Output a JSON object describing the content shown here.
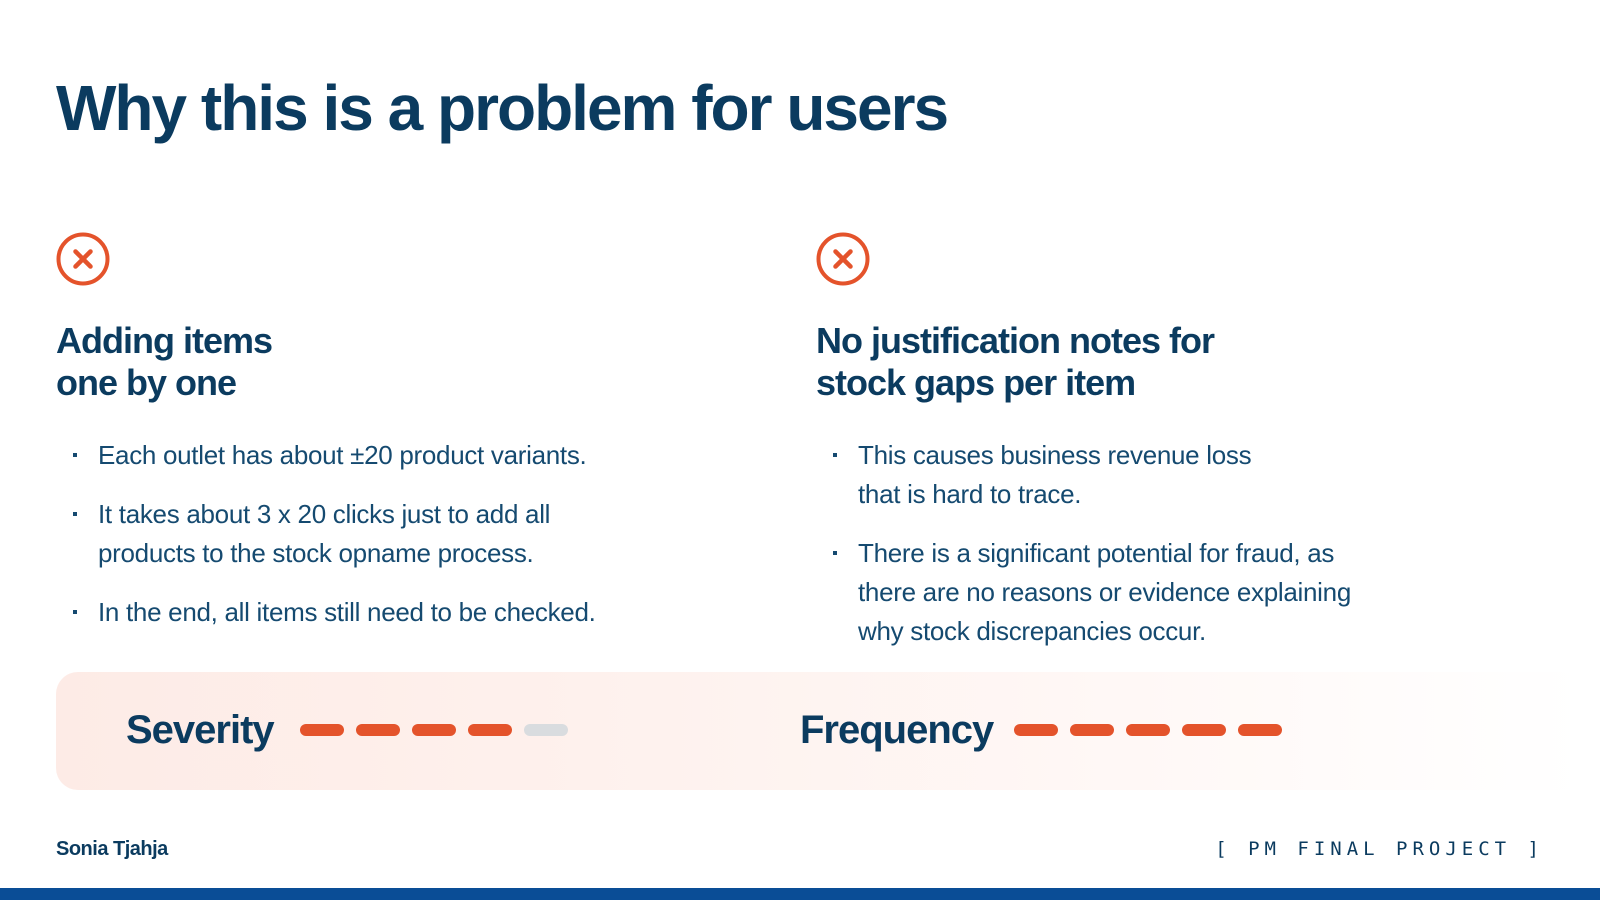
{
  "title": "Why this is a problem for users",
  "colors": {
    "accent": "#e4532b",
    "heading": "#0b3b5f",
    "inactive_dash": "#d9dcdf",
    "bottom_bar": "#0a4d96"
  },
  "problems": [
    {
      "icon": "close-circle-icon",
      "heading_lines": [
        "Adding items",
        "one by one"
      ],
      "bullets": [
        [
          "Each outlet has about ±20 product variants."
        ],
        [
          "It takes about 3 x 20 clicks just to add all",
          "products to the stock opname process."
        ],
        [
          "In the end, all items still need to be checked."
        ]
      ]
    },
    {
      "icon": "close-circle-icon",
      "heading_lines": [
        "No justification notes for",
        "stock gaps per item"
      ],
      "bullets": [
        [
          "This causes business revenue loss",
          "that is hard to trace."
        ],
        [
          "There is a significant potential for fraud, as",
          "there are no reasons or evidence explaining",
          "why stock discrepancies occur."
        ]
      ]
    }
  ],
  "ratings": {
    "severity": {
      "label": "Severity",
      "level": 4,
      "max": 5
    },
    "frequency": {
      "label": "Frequency",
      "level": 5,
      "max": 5
    }
  },
  "footer": {
    "author": "Sonia Tjahja",
    "project": "[ PM FINAL PROJECT ]"
  }
}
